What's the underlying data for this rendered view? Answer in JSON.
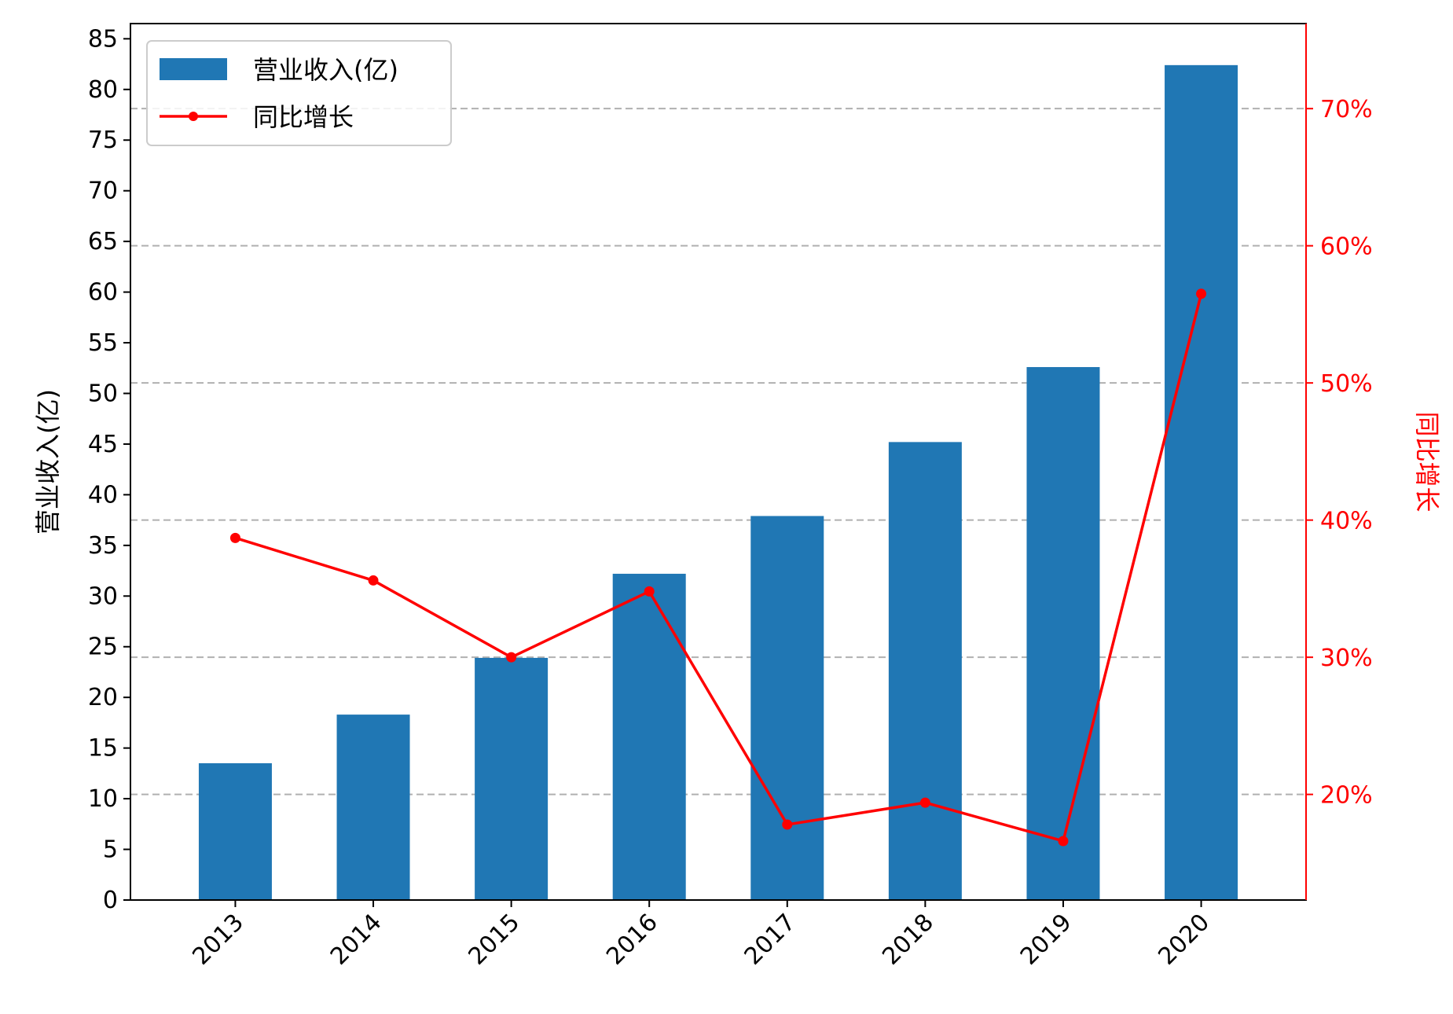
{
  "chart_data": {
    "type": "bar",
    "categories": [
      "2013",
      "2014",
      "2015",
      "2016",
      "2017",
      "2018",
      "2019",
      "2020"
    ],
    "series": [
      {
        "name": "营业收入(亿)",
        "type": "bar",
        "axis": "left",
        "color": "#2077b4",
        "values": [
          13.5,
          18.3,
          23.9,
          32.2,
          37.9,
          45.2,
          52.6,
          82.4
        ]
      },
      {
        "name": "同比增长",
        "type": "line",
        "axis": "right",
        "color": "#ff0000",
        "values": [
          0.387,
          0.356,
          0.3,
          0.348,
          0.178,
          0.194,
          0.166,
          0.565
        ]
      }
    ],
    "ylabel_left": "营业收入(亿)",
    "ylabel_right": "同比增长",
    "ylim_left": [
      0,
      86.5
    ],
    "yticks_left": [
      0,
      5,
      10,
      15,
      20,
      25,
      30,
      35,
      40,
      45,
      50,
      55,
      60,
      65,
      70,
      75,
      80,
      85
    ],
    "ylim_right": [
      0.123,
      0.762
    ],
    "yticks_right": [
      0.2,
      0.3,
      0.4,
      0.5,
      0.6,
      0.7
    ],
    "ytick_labels_right": [
      "20%",
      "30%",
      "40%",
      "50%",
      "60%",
      "70%"
    ],
    "grid": "horizontal dashed at right-axis ticks",
    "legend": "top-left",
    "grid_color": "#b0b0b0",
    "axis_color": "#000000"
  }
}
